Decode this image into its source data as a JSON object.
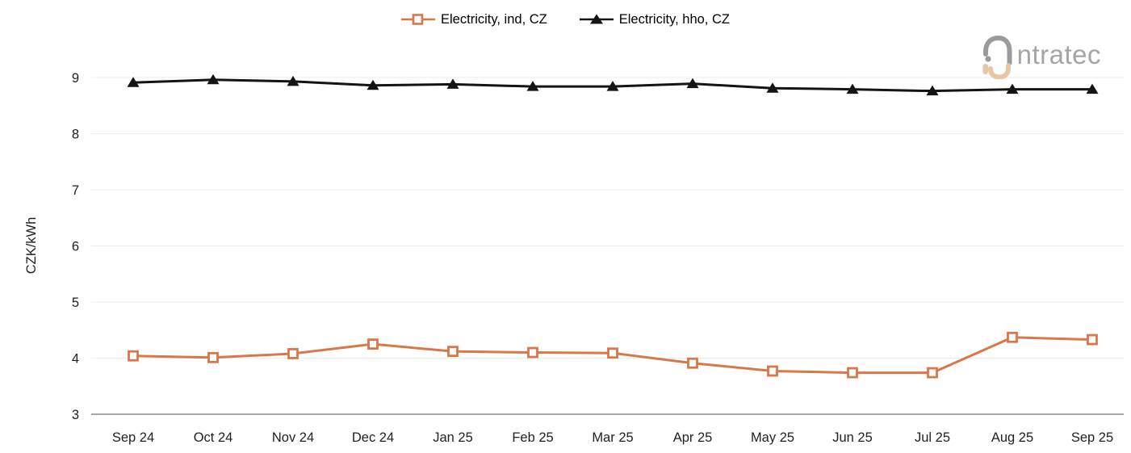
{
  "brand": {
    "name": "intratec",
    "wordmark": "ntratec"
  },
  "legend": [
    {
      "label": "Electricity, ind, CZ"
    },
    {
      "label": "Electricity, hho, CZ"
    }
  ],
  "colors": {
    "ind": "#d8784a",
    "hho": "#141414",
    "grid": "#ececec",
    "axis": "#8a8a8a",
    "tick_text": "#1f1f1f",
    "logo_gray": "#9b9b9b",
    "logo_tan": "#e8c7a6"
  },
  "chart_data": {
    "type": "line",
    "title": "",
    "xlabel": "",
    "ylabel": "CZK/kWh",
    "ylim": [
      3,
      9.5
    ],
    "yticks": [
      3,
      4,
      5,
      6,
      7,
      8,
      9
    ],
    "grid": "horizontal",
    "legend_position": "top-center",
    "categories": [
      "Sep 24",
      "Oct 24",
      "Nov 24",
      "Dec 24",
      "Jan 25",
      "Feb 25",
      "Mar 25",
      "Apr 25",
      "May 25",
      "Jun 25",
      "Jul 25",
      "Aug 25",
      "Sep 25"
    ],
    "series": [
      {
        "name": "Electricity, ind, CZ",
        "color": "#d8784a",
        "marker": "square-open",
        "values": [
          4.04,
          4.01,
          4.08,
          4.25,
          4.12,
          4.1,
          4.09,
          3.91,
          3.77,
          3.74,
          3.74,
          4.37,
          4.33
        ]
      },
      {
        "name": "Electricity, hho, CZ",
        "color": "#141414",
        "marker": "triangle-filled",
        "values": [
          8.91,
          8.96,
          8.93,
          8.86,
          8.88,
          8.84,
          8.84,
          8.89,
          8.81,
          8.79,
          8.76,
          8.79,
          8.79
        ]
      }
    ]
  }
}
